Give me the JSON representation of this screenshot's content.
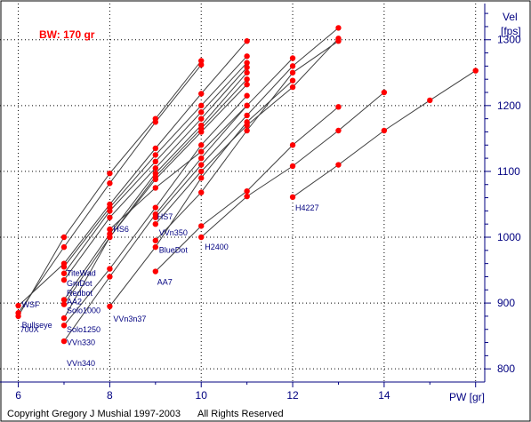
{
  "chart_data": {
    "type": "line",
    "annotation": "BW: 170 gr",
    "xlabel": "PW [gr]",
    "ylabel_line1": "Vel",
    "ylabel_line2": "[fps]",
    "xlim": [
      5.6,
      16.2
    ],
    "ylim": [
      780,
      1355
    ],
    "xticks": [
      6,
      8,
      10,
      12,
      14,
      16
    ],
    "yticks": [
      800,
      900,
      1000,
      1100,
      1200,
      1300
    ],
    "grid": true,
    "colors": {
      "background": "#ffffff",
      "grid": "#000000",
      "axis": "#000080",
      "marker": "#ff0000",
      "line": "#404040",
      "label": "#000080",
      "annotation": "#ff0000"
    },
    "series": [
      {
        "name": "Bullseye",
        "x": [
          6,
          7,
          8,
          9,
          10
        ],
        "y": [
          880,
          1000,
          1097,
          1180,
          1268
        ]
      },
      {
        "name": "700X",
        "x": [
          6,
          7,
          8,
          9,
          10
        ],
        "y": [
          885,
          985,
          1082,
          1175,
          1262
        ]
      },
      {
        "name": "WSF",
        "x": [
          6,
          7,
          8,
          9,
          10,
          11
        ],
        "y": [
          896,
          960,
          1050,
          1135,
          1218,
          1298
        ]
      },
      {
        "name": "TiteWad",
        "x": [
          7,
          8,
          9,
          10,
          11
        ],
        "y": [
          955,
          1045,
          1125,
          1200,
          1275
        ]
      },
      {
        "name": "GmDot",
        "x": [
          7,
          8,
          9,
          10,
          11
        ],
        "y": [
          945,
          1040,
          1115,
          1190,
          1265
        ]
      },
      {
        "name": "Redbot",
        "x": [
          7,
          8,
          9,
          10,
          11
        ],
        "y": [
          935,
          1030,
          1105,
          1180,
          1258
        ]
      },
      {
        "name": "AA2",
        "x": [
          7,
          8,
          9,
          10,
          11
        ],
        "y": [
          905,
          1005,
          1097,
          1170,
          1250
        ]
      },
      {
        "name": "Solo1000",
        "x": [
          7,
          8,
          9,
          10,
          11
        ],
        "y": [
          898,
          1000,
          1092,
          1165,
          1240
        ]
      },
      {
        "name": "Solo1250",
        "x": [
          7,
          8,
          9,
          10,
          11
        ],
        "y": [
          877,
          1000,
          1088,
          1160,
          1232
        ]
      },
      {
        "name": "VVn330",
        "x": [
          7,
          8,
          9,
          10,
          11
        ],
        "y": [
          866,
          952,
          1045,
          1140,
          1215
        ]
      },
      {
        "name": "VVn340",
        "x": [
          7,
          8,
          9,
          10,
          11
        ],
        "y": [
          842,
          940,
          1035,
          1120,
          1200
        ]
      },
      {
        "name": "HS6",
        "x": [
          8,
          9,
          10,
          11,
          12
        ],
        "y": [
          1012,
          1075,
          1130,
          1200,
          1272
        ]
      },
      {
        "name": "VVn3n37",
        "x": [
          8,
          9,
          10,
          11,
          12
        ],
        "y": [
          895,
          985,
          1090,
          1175,
          1238
        ]
      },
      {
        "name": "HS7",
        "x": [
          9,
          10,
          11,
          12,
          13
        ],
        "y": [
          1030,
          1110,
          1185,
          1260,
          1318
        ]
      },
      {
        "name": "VVn350",
        "x": [
          9,
          10,
          11,
          12,
          13
        ],
        "y": [
          1020,
          1100,
          1170,
          1228,
          1302
        ]
      },
      {
        "name": "BlueDot",
        "x": [
          9,
          10,
          11,
          12,
          13
        ],
        "y": [
          995,
          1068,
          1162,
          1250,
          1298
        ]
      },
      {
        "name": "AA7",
        "x": [
          9,
          10,
          11,
          12,
          13
        ],
        "y": [
          948,
          1017,
          1070,
          1140,
          1198
        ]
      },
      {
        "name": "H2400",
        "x": [
          10,
          11,
          12,
          13,
          14
        ],
        "y": [
          1000,
          1062,
          1108,
          1162,
          1220
        ]
      },
      {
        "name": "H4227",
        "x": [
          12,
          13,
          14,
          15,
          16
        ],
        "y": [
          1061,
          1110,
          1162,
          1208,
          1253
        ]
      }
    ],
    "label_points": [
      {
        "text": "Bullseye",
        "x": 6,
        "y": 880
      },
      {
        "text": "700X",
        "x": 6,
        "y": 885
      },
      {
        "text": "WSF",
        "x": 6,
        "y": 896
      },
      {
        "text": "TiteWad",
        "x": 7,
        "y": 955
      },
      {
        "text": "GmDot",
        "x": 7,
        "y": 945
      },
      {
        "text": "Redbot",
        "x": 7,
        "y": 935
      },
      {
        "text": "AA2",
        "x": 7,
        "y": 905
      },
      {
        "text": "Solo1000",
        "x": 7,
        "y": 898
      },
      {
        "text": "Solo1250",
        "x": 7,
        "y": 877
      },
      {
        "text": "VVn330",
        "x": 7,
        "y": 866
      },
      {
        "text": "VVn340",
        "x": 7,
        "y": 842
      },
      {
        "text": "HS6",
        "x": 8,
        "y": 1012
      },
      {
        "text": "VVn3n37",
        "x": 8,
        "y": 895
      },
      {
        "text": "HS7",
        "x": 9,
        "y": 1030
      },
      {
        "text": "VVn350",
        "x": 9,
        "y": 1020
      },
      {
        "text": "BlueDot",
        "x": 9,
        "y": 995
      },
      {
        "text": "AA7",
        "x": 9,
        "y": 948
      },
      {
        "text": "H2400",
        "x": 10,
        "y": 1000
      },
      {
        "text": "H4227",
        "x": 12,
        "y": 1061
      }
    ]
  },
  "footer": {
    "copyright": "Copyright Gregory J  Mushial 1997-2003",
    "rights": "All Rights Reserved"
  }
}
